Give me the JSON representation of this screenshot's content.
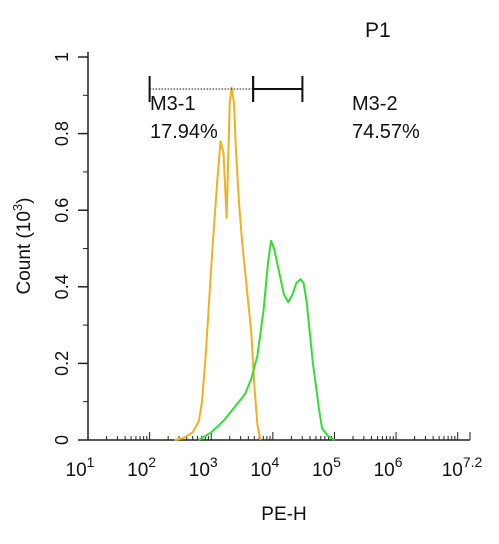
{
  "chart_data": {
    "type": "line",
    "gate_label": "P1",
    "gate_label_color": "#22cc22",
    "xlabel": "PE-H",
    "xscale": "log",
    "xlim_log10": [
      1,
      7.2
    ],
    "x_ticks": [
      {
        "base": "10",
        "exp": "1"
      },
      {
        "base": "10",
        "exp": "2"
      },
      {
        "base": "10",
        "exp": "3"
      },
      {
        "base": "10",
        "exp": "4"
      },
      {
        "base": "10",
        "exp": "5"
      },
      {
        "base": "10",
        "exp": "6"
      },
      {
        "base": "10",
        "exp": "7.2"
      }
    ],
    "ylabel": "Count  (10",
    "ylabel_exp": "3",
    "ylabel_close": ")",
    "ylim": [
      0,
      1
    ],
    "y_ticks": [
      "0",
      "0.2",
      "0.4",
      "0.6",
      "0.8",
      "1"
    ],
    "y_tick_values": [
      0,
      0.2,
      0.4,
      0.6,
      0.8,
      1.0
    ],
    "markers": [
      {
        "name": "M3-1",
        "percent": "17.94%",
        "range_log10": [
          2.0,
          3.68
        ],
        "line_style": "dotted"
      },
      {
        "name": "M3-2",
        "percent": "74.57%",
        "range_log10": [
          3.68,
          4.48
        ],
        "line_style": "solid"
      }
    ],
    "series": [
      {
        "color": "#f0b020",
        "x_log10": [
          2.4,
          2.55,
          2.7,
          2.8,
          2.85,
          2.9,
          2.95,
          3.0,
          3.05,
          3.1,
          3.15,
          3.2,
          3.25,
          3.3,
          3.33,
          3.37,
          3.4,
          3.45,
          3.5,
          3.55,
          3.6,
          3.65,
          3.7,
          3.75,
          3.8
        ],
        "y": [
          0.0,
          0.005,
          0.02,
          0.05,
          0.1,
          0.2,
          0.32,
          0.45,
          0.57,
          0.68,
          0.78,
          0.75,
          0.58,
          0.88,
          0.92,
          0.88,
          0.76,
          0.62,
          0.52,
          0.44,
          0.36,
          0.28,
          0.14,
          0.04,
          0.0
        ]
      },
      {
        "color": "#33dd33",
        "x_log10": [
          2.8,
          3.0,
          3.2,
          3.4,
          3.55,
          3.65,
          3.75,
          3.85,
          3.92,
          3.97,
          4.02,
          4.1,
          4.18,
          4.25,
          4.32,
          4.38,
          4.45,
          4.5,
          4.55,
          4.6,
          4.65,
          4.7,
          4.75,
          4.8,
          4.9,
          5.0
        ],
        "y": [
          0.0,
          0.02,
          0.05,
          0.09,
          0.12,
          0.16,
          0.22,
          0.34,
          0.46,
          0.52,
          0.5,
          0.44,
          0.38,
          0.36,
          0.38,
          0.41,
          0.42,
          0.41,
          0.36,
          0.28,
          0.2,
          0.14,
          0.08,
          0.03,
          0.01,
          0.0
        ]
      }
    ]
  }
}
